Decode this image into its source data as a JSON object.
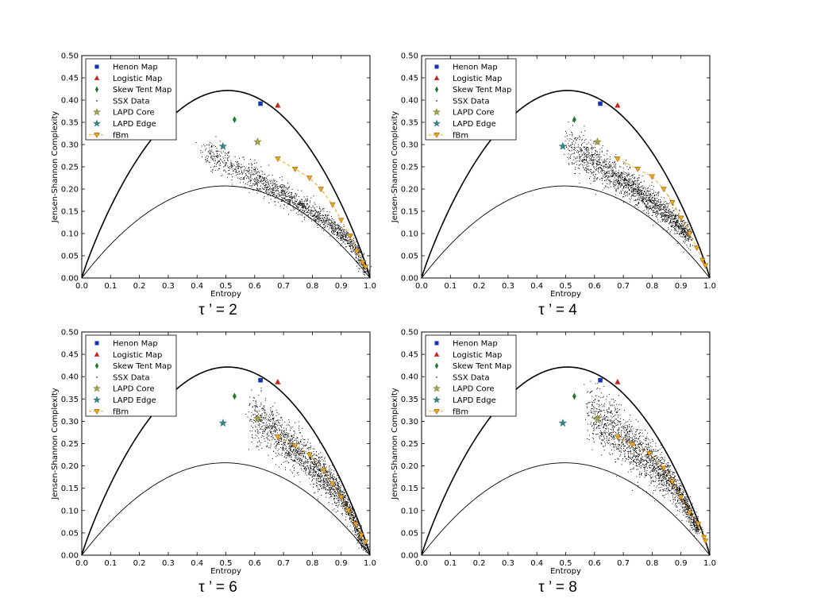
{
  "colors": {
    "henon": "#1533b7",
    "logistic": "#c8231c",
    "skew_tent": "#1f7a2a",
    "ssx": "#000000",
    "lapd_core": "#a3a63a",
    "lapd_edge": "#2b8c8c",
    "fbm": "#f2a51b"
  },
  "chart_data": [
    {
      "type": "scatter",
      "caption": "τ ’ = 2",
      "xlabel": "Entropy",
      "ylabel": "Jensen-Shannon Complexity",
      "xlim": [
        0.0,
        1.0
      ],
      "ylim": [
        0.0,
        0.5
      ],
      "xticks": [
        "0.0",
        "0.1",
        "0.2",
        "0.3",
        "0.4",
        "0.5",
        "0.6",
        "0.7",
        "0.8",
        "0.9",
        "1.0"
      ],
      "yticks": [
        "0.00",
        "0.05",
        "0.10",
        "0.15",
        "0.20",
        "0.25",
        "0.30",
        "0.35",
        "0.40",
        "0.45",
        "0.50"
      ],
      "legend_position": "top-left",
      "legend": [
        "Henon Map",
        "Logistic Map",
        "Skew Tent Map",
        "SSX Data",
        "LAPD Core",
        "LAPD Edge",
        "fBm"
      ],
      "series": [
        {
          "name": "Henon Map",
          "marker": "square",
          "points": [
            [
              0.62,
              0.392
            ]
          ]
        },
        {
          "name": "Logistic Map",
          "marker": "triangle-up",
          "points": [
            [
              0.68,
              0.388
            ]
          ]
        },
        {
          "name": "Skew Tent Map",
          "marker": "diamond",
          "points": [
            [
              0.53,
              0.356
            ]
          ]
        },
        {
          "name": "SSX Data",
          "marker": "dot",
          "cloud": {
            "h_min": 0.42,
            "h_max": 0.985,
            "start_c": 0.285,
            "spread": 0.012,
            "count": 1500
          }
        },
        {
          "name": "LAPD Core",
          "marker": "star",
          "points": [
            [
              0.61,
              0.306
            ]
          ]
        },
        {
          "name": "LAPD Edge",
          "marker": "star",
          "points": [
            [
              0.49,
              0.296
            ]
          ]
        },
        {
          "name": "fBm",
          "marker": "triangle-down",
          "line": "dashed",
          "points": [
            [
              0.68,
              0.268
            ],
            [
              0.74,
              0.245
            ],
            [
              0.79,
              0.225
            ],
            [
              0.83,
              0.2
            ],
            [
              0.87,
              0.165
            ],
            [
              0.9,
              0.13
            ],
            [
              0.93,
              0.095
            ],
            [
              0.955,
              0.06
            ],
            [
              0.975,
              0.035
            ],
            [
              0.985,
              0.025
            ]
          ]
        }
      ]
    },
    {
      "type": "scatter",
      "caption": "τ ’ = 4",
      "xlabel": "Entropy",
      "ylabel": "Jensen-Shannon Complexity",
      "xlim": [
        0.0,
        1.0
      ],
      "ylim": [
        0.0,
        0.5
      ],
      "xticks": [
        "0.0",
        "0.1",
        "0.2",
        "0.3",
        "0.4",
        "0.5",
        "0.6",
        "0.7",
        "0.8",
        "0.9",
        "1.0"
      ],
      "yticks": [
        "0.00",
        "0.05",
        "0.10",
        "0.15",
        "0.20",
        "0.25",
        "0.30",
        "0.35",
        "0.40",
        "0.45",
        "0.50"
      ],
      "legend_position": "top-left",
      "legend": [
        "Henon Map",
        "Logistic Map",
        "Skew Tent Map",
        "SSX Data",
        "LAPD Core",
        "LAPD Edge",
        "fBm"
      ],
      "series": [
        {
          "name": "Henon Map",
          "marker": "square",
          "points": [
            [
              0.62,
              0.392
            ]
          ]
        },
        {
          "name": "Logistic Map",
          "marker": "triangle-up",
          "points": [
            [
              0.68,
              0.388
            ]
          ]
        },
        {
          "name": "Skew Tent Map",
          "marker": "diamond",
          "points": [
            [
              0.53,
              0.356
            ]
          ]
        },
        {
          "name": "SSX Data",
          "marker": "dot",
          "cloud": {
            "h_min": 0.5,
            "h_max": 0.93,
            "start_c": 0.3,
            "spread": 0.016,
            "count": 1700
          }
        },
        {
          "name": "LAPD Core",
          "marker": "star",
          "points": [
            [
              0.61,
              0.306
            ]
          ]
        },
        {
          "name": "LAPD Edge",
          "marker": "star",
          "points": [
            [
              0.49,
              0.296
            ]
          ]
        },
        {
          "name": "fBm",
          "marker": "triangle-down",
          "line": "dashed",
          "points": [
            [
              0.68,
              0.268
            ],
            [
              0.75,
              0.245
            ],
            [
              0.8,
              0.228
            ],
            [
              0.84,
              0.2
            ],
            [
              0.87,
              0.17
            ],
            [
              0.9,
              0.135
            ],
            [
              0.93,
              0.1
            ],
            [
              0.955,
              0.068
            ],
            [
              0.975,
              0.04
            ],
            [
              0.985,
              0.028
            ]
          ]
        }
      ]
    },
    {
      "type": "scatter",
      "caption": "τ ’ = 6",
      "xlabel": "Entropy",
      "ylabel": "Jensen-Shannon Complexity",
      "xlim": [
        0.0,
        1.0
      ],
      "ylim": [
        0.0,
        0.5
      ],
      "xticks": [
        "0.0",
        "0.1",
        "0.2",
        "0.3",
        "0.4",
        "0.5",
        "0.6",
        "0.7",
        "0.8",
        "0.9",
        "1.0"
      ],
      "yticks": [
        "0.00",
        "0.05",
        "0.10",
        "0.15",
        "0.20",
        "0.25",
        "0.30",
        "0.35",
        "0.40",
        "0.45",
        "0.50"
      ],
      "legend_position": "top-left",
      "legend": [
        "Henon Map",
        "Logistic Map",
        "Skew Tent Map",
        "SSX Data",
        "LAPD Core",
        "LAPD Edge",
        "fBm"
      ],
      "series": [
        {
          "name": "Henon Map",
          "marker": "square",
          "points": [
            [
              0.62,
              0.392
            ]
          ]
        },
        {
          "name": "Logistic Map",
          "marker": "triangle-up",
          "points": [
            [
              0.68,
              0.388
            ]
          ]
        },
        {
          "name": "Skew Tent Map",
          "marker": "diamond",
          "points": [
            [
              0.53,
              0.356
            ]
          ]
        },
        {
          "name": "SSX Data",
          "marker": "dot",
          "cloud": {
            "h_min": 0.58,
            "h_max": 0.985,
            "start_c": 0.32,
            "spread": 0.022,
            "count": 1900
          }
        },
        {
          "name": "LAPD Core",
          "marker": "star",
          "points": [
            [
              0.61,
              0.306
            ]
          ]
        },
        {
          "name": "LAPD Edge",
          "marker": "star",
          "points": [
            [
              0.49,
              0.296
            ]
          ]
        },
        {
          "name": "fBm",
          "marker": "triangle-down",
          "line": "dashed",
          "points": [
            [
              0.68,
              0.265
            ],
            [
              0.74,
              0.245
            ],
            [
              0.79,
              0.225
            ],
            [
              0.84,
              0.19
            ],
            [
              0.87,
              0.16
            ],
            [
              0.9,
              0.13
            ],
            [
              0.925,
              0.1
            ],
            [
              0.95,
              0.07
            ],
            [
              0.97,
              0.045
            ],
            [
              0.985,
              0.03
            ]
          ]
        }
      ]
    },
    {
      "type": "scatter",
      "caption": "τ ’ = 8",
      "xlabel": "Entropy",
      "ylabel": "Jensen-Shannon Complexity",
      "xlim": [
        0.0,
        1.0
      ],
      "ylim": [
        0.0,
        0.5
      ],
      "xticks": [
        "0.0",
        "0.1",
        "0.2",
        "0.3",
        "0.4",
        "0.5",
        "0.6",
        "0.7",
        "0.8",
        "0.9",
        "1.0"
      ],
      "yticks": [
        "0.00",
        "0.05",
        "0.10",
        "0.15",
        "0.20",
        "0.25",
        "0.30",
        "0.35",
        "0.40",
        "0.45",
        "0.50"
      ],
      "legend_position": "top-left",
      "legend": [
        "Henon Map",
        "Logistic Map",
        "Skew Tent Map",
        "SSX Data",
        "LAPD Core",
        "LAPD Edge",
        "fBm"
      ],
      "series": [
        {
          "name": "Henon Map",
          "marker": "square",
          "points": [
            [
              0.62,
              0.392
            ]
          ]
        },
        {
          "name": "Logistic Map",
          "marker": "triangle-up",
          "points": [
            [
              0.68,
              0.388
            ]
          ]
        },
        {
          "name": "Skew Tent Map",
          "marker": "diamond",
          "points": [
            [
              0.53,
              0.356
            ]
          ]
        },
        {
          "name": "SSX Data",
          "marker": "dot",
          "cloud": {
            "h_min": 0.57,
            "h_max": 0.96,
            "start_c": 0.33,
            "spread": 0.025,
            "count": 1900
          }
        },
        {
          "name": "LAPD Core",
          "marker": "star",
          "points": [
            [
              0.61,
              0.306
            ]
          ]
        },
        {
          "name": "LAPD Edge",
          "marker": "star",
          "points": [
            [
              0.49,
              0.296
            ]
          ]
        },
        {
          "name": "fBm",
          "marker": "triangle-down",
          "line": "dashed",
          "points": [
            [
              0.68,
              0.265
            ],
            [
              0.73,
              0.248
            ],
            [
              0.79,
              0.228
            ],
            [
              0.84,
              0.195
            ],
            [
              0.87,
              0.165
            ],
            [
              0.9,
              0.13
            ],
            [
              0.93,
              0.095
            ],
            [
              0.96,
              0.07
            ],
            [
              0.98,
              0.04
            ],
            [
              0.985,
              0.032
            ]
          ]
        }
      ]
    }
  ]
}
